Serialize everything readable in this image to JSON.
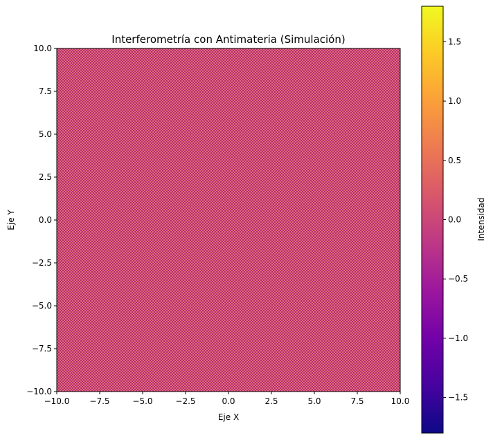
{
  "chart_data": {
    "type": "heatmap",
    "title": "Interferometría con Antimateria (Simulación)",
    "xlabel": "Eje X",
    "ylabel": "Eje Y",
    "xlim": [
      -10,
      10
    ],
    "ylim": [
      -10,
      10
    ],
    "x_ticks": [
      "−10.0",
      "−7.5",
      "−5.0",
      "−2.5",
      "0.0",
      "2.5",
      "5.0",
      "7.5",
      "10.0"
    ],
    "y_ticks": [
      "−10.0",
      "−7.5",
      "−5.0",
      "−2.5",
      "0.0",
      "2.5",
      "5.0",
      "7.5",
      "10.0"
    ],
    "x_tick_values": [
      -10,
      -7.5,
      -5,
      -2.5,
      0,
      2.5,
      5,
      7.5,
      10
    ],
    "y_tick_values": [
      -10,
      -7.5,
      -5,
      -2.5,
      0,
      2.5,
      5,
      7.5,
      10
    ],
    "grid": false,
    "pattern": "fine checkerboard interference fringes, near-zero mean intensity",
    "colorbar": {
      "label": "Intensidad",
      "colormap": "plasma",
      "range": [
        -1.8,
        1.8
      ],
      "ticks": [
        "−1.5",
        "−1.0",
        "−0.5",
        "0.0",
        "0.5",
        "1.0",
        "1.5"
      ],
      "tick_values": [
        -1.5,
        -1.0,
        -0.5,
        0.0,
        0.5,
        1.0,
        1.5
      ],
      "colors": [
        "#0d0887",
        "#46039f",
        "#7201a8",
        "#9c179e",
        "#bd3786",
        "#d8576b",
        "#ed7953",
        "#fb9f3a",
        "#fdca26",
        "#f0f921"
      ]
    },
    "field_colors": {
      "dominant": "#d8576b",
      "dark": "#b0306e",
      "light": "#e4687a"
    }
  }
}
